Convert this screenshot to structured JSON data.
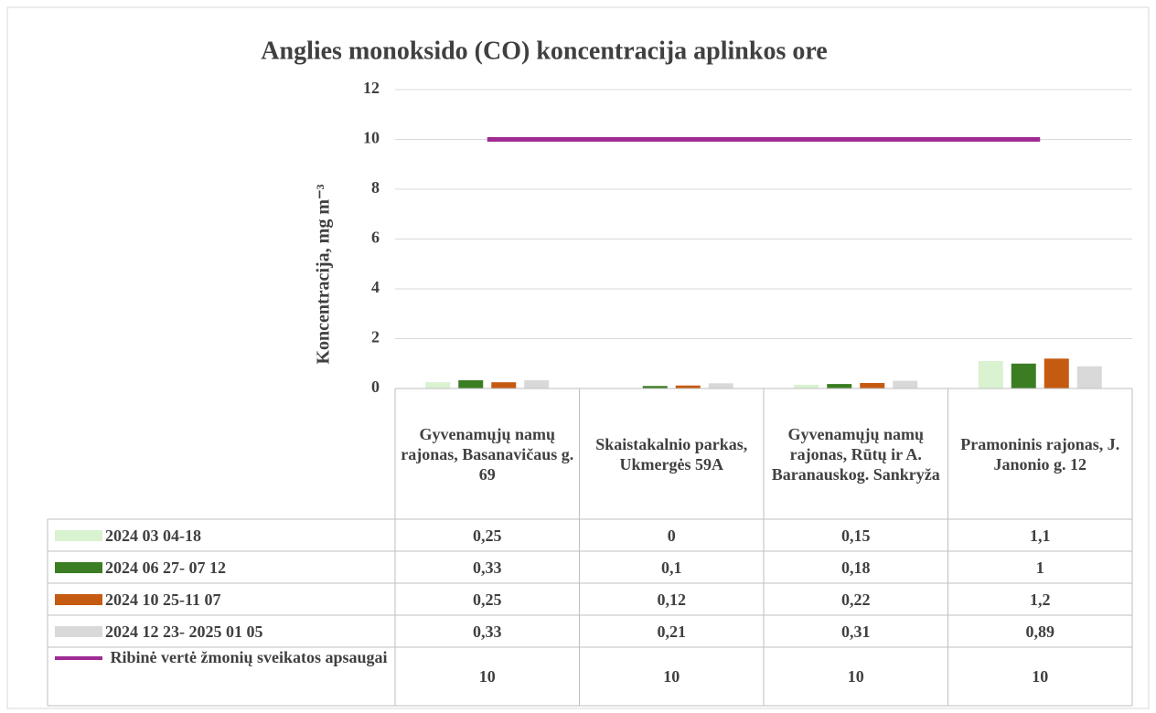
{
  "chart_data": {
    "type": "bar",
    "title": "Anglies monoksido (CO) koncentracija aplinkos ore",
    "y_label": "Koncentracija, mg m⁻³",
    "categories": [
      "Gyvenamųjų namų rajonas, Basanavičaus g. 69",
      "Skaistakalnio parkas, Ukmergės 59A",
      "Gyvenamųjų namų rajonas, Rūtų ir A. Baranauskog. Sankryža",
      "Pramoninis rajonas, J. Janonio g. 12"
    ],
    "series": [
      {
        "name": "2024 03 04-18",
        "color": "#d9f2d0",
        "values": [
          0.25,
          0,
          0.15,
          1.1
        ],
        "value_labels": [
          "0,25",
          "0",
          "0,15",
          "1,1"
        ]
      },
      {
        "name": "2024 06 27- 07 12",
        "color": "#3a7d22",
        "values": [
          0.33,
          0.1,
          0.18,
          1
        ],
        "value_labels": [
          "0,33",
          "0,1",
          "0,18",
          "1"
        ]
      },
      {
        "name": "2024 10 25-11 07",
        "color": "#c55a11",
        "values": [
          0.25,
          0.12,
          0.22,
          1.2
        ],
        "value_labels": [
          "0,25",
          "0,12",
          "0,22",
          "1,2"
        ]
      },
      {
        "name": "2024 12 23- 2025 01 05",
        "color": "#d9d9d9",
        "values": [
          0.33,
          0.21,
          0.31,
          0.89
        ],
        "value_labels": [
          "0,33",
          "0,21",
          "0,31",
          "0,89"
        ]
      },
      {
        "name": "Ribinė vertė žmonių sveikatos apsaugai",
        "color": "#a02b93",
        "type": "line",
        "values": [
          10,
          10,
          10,
          10
        ]
      }
    ],
    "ylim": [
      0,
      12
    ],
    "yticks": [
      0,
      2,
      4,
      6,
      8,
      10,
      12
    ],
    "grid": true
  }
}
